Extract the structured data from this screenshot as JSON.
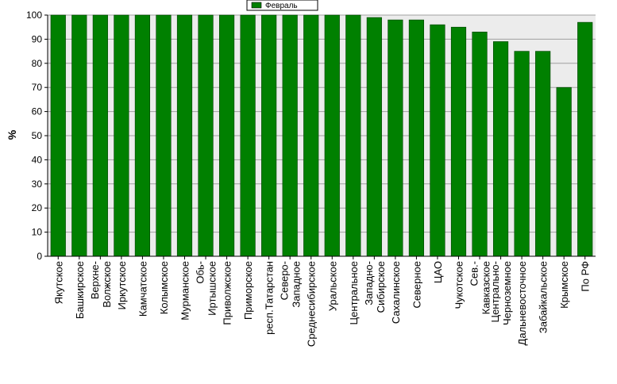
{
  "chart_data": {
    "type": "bar",
    "title": "",
    "xlabel": "",
    "ylabel": "%",
    "ylim": [
      0,
      100
    ],
    "yticks": [
      0,
      10,
      20,
      30,
      40,
      50,
      60,
      70,
      80,
      90,
      100
    ],
    "grid": true,
    "legend_position": "top-center",
    "categories": [
      "Якутское",
      "Башкирское",
      "Верхне-Волжское",
      "Иркутское",
      "Камчатское",
      "Колымское",
      "Мурманское",
      "Обь-Иртышское",
      "Приволжское",
      "Приморское",
      "респ.Татарстан",
      "Северо-Западное",
      "Среднесибирское",
      "Уральское",
      "Центральное",
      "Западно-Сибирское",
      "Сахалинское",
      "Северное",
      "ЦАО",
      "Чукотское",
      "Сев.-Кавказское",
      "Центрально-Черноземное",
      "Дальневосточное",
      "Забайкальское",
      "Крымское",
      "По РФ"
    ],
    "category_lines": [
      [
        "Якутское"
      ],
      [
        "Башкирское"
      ],
      [
        "Верхне-",
        "Волжское"
      ],
      [
        "Иркутское"
      ],
      [
        "Камчатское"
      ],
      [
        "Колымское"
      ],
      [
        "Мурманское"
      ],
      [
        "Обь-",
        "Иртышское"
      ],
      [
        "Приволжское"
      ],
      [
        "Приморское"
      ],
      [
        "респ.Татарстан"
      ],
      [
        "Северо-",
        "Западное"
      ],
      [
        "Среднесибирское"
      ],
      [
        "Уральское"
      ],
      [
        "Центральное"
      ],
      [
        "Западно-",
        "Сибирское"
      ],
      [
        "Сахалинское"
      ],
      [
        "Северное"
      ],
      [
        "ЦАО"
      ],
      [
        "Чукотское"
      ],
      [
        "Сев.-",
        "Кавказское"
      ],
      [
        "Центрально-",
        "Черноземное"
      ],
      [
        "Дальневосточное"
      ],
      [
        "Забайкальское"
      ],
      [
        "Крымское"
      ],
      [
        "По РФ"
      ]
    ],
    "series": [
      {
        "name": "Февраль",
        "color": "#008000",
        "values": [
          100,
          100,
          100,
          100,
          100,
          100,
          100,
          100,
          100,
          100,
          100,
          100,
          100,
          100,
          100,
          99,
          98,
          98,
          96,
          95,
          93,
          89,
          85,
          85,
          70,
          97
        ]
      }
    ],
    "colors": {
      "plot_background": "#ececec",
      "gridline": "#a0a0a0",
      "axis": "#000000",
      "bar_edge": "#004000"
    }
  }
}
